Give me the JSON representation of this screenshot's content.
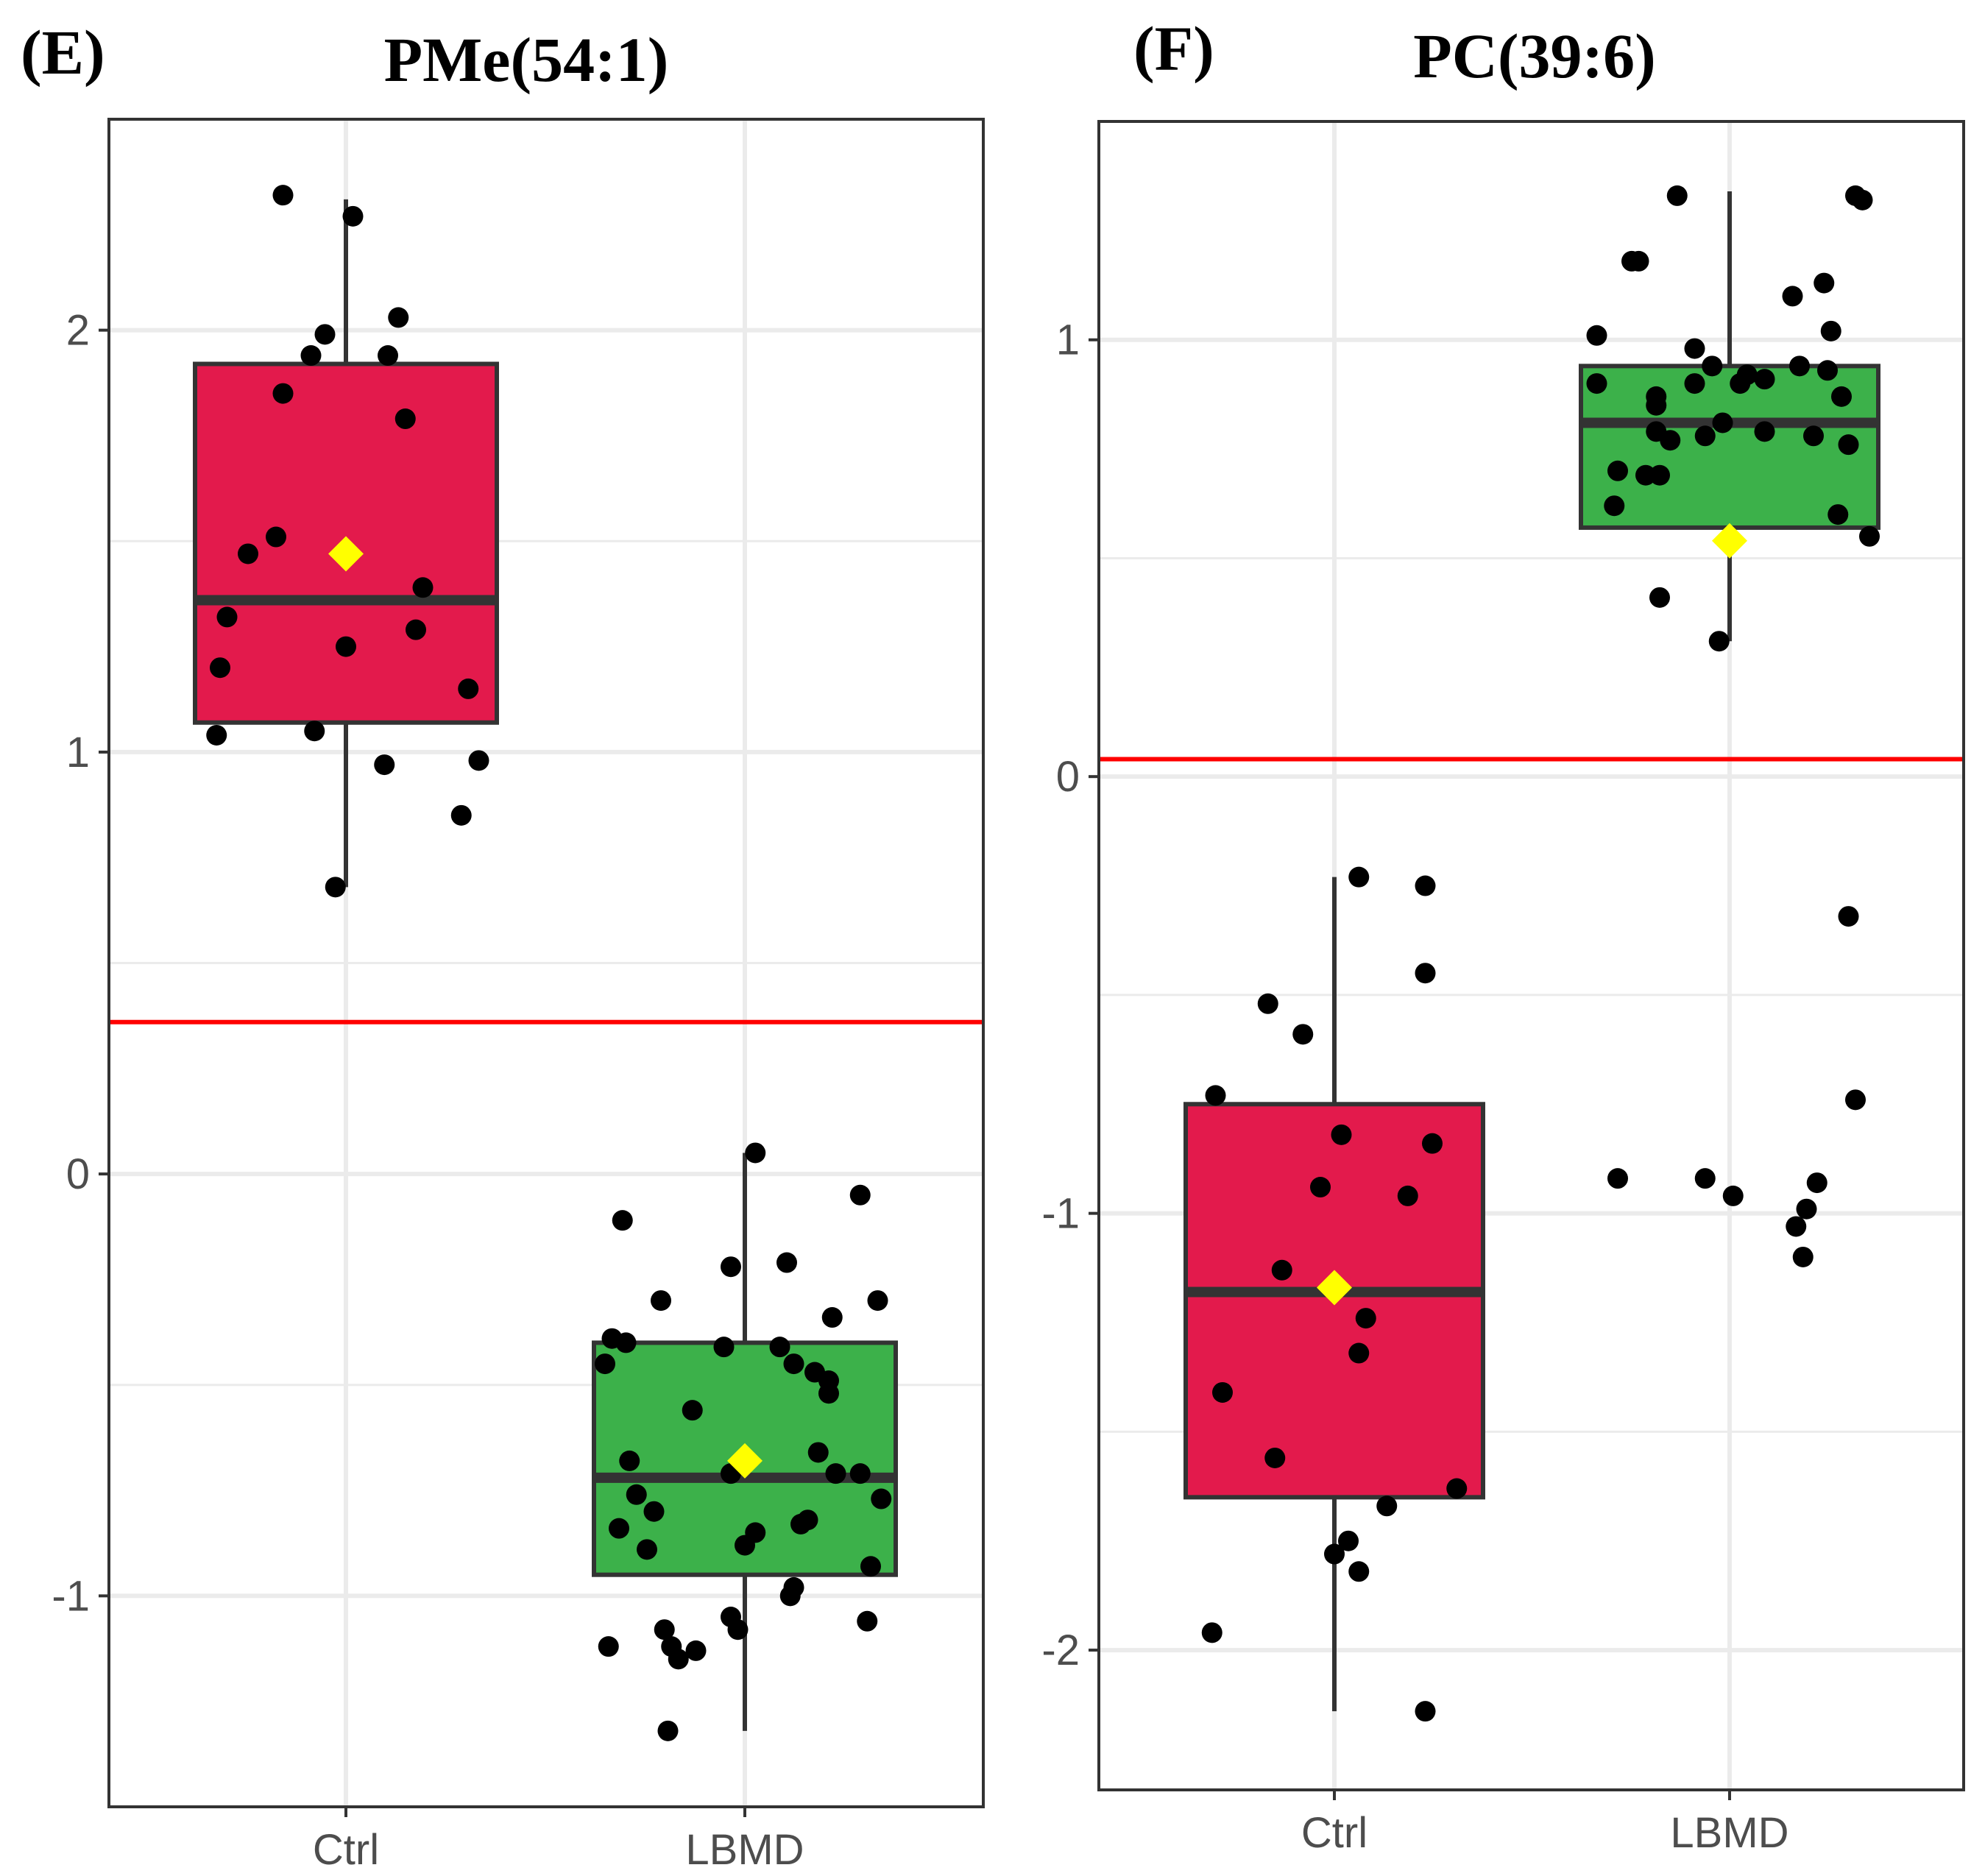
{
  "colors": {
    "ctrl_fill": "#e31a4c",
    "lbmd_fill": "#3cb14a",
    "box_stroke": "#333333",
    "point": "#000000",
    "mean_marker": "#ffff00",
    "threshold": "#ff0000",
    "grid": "#ebebeb",
    "panel_border": "#333333",
    "tick_text": "#4d4d4d"
  },
  "chart_data": [
    {
      "panel": "(E)",
      "title": "PMe(54:1)",
      "type": "box",
      "categories": [
        "Ctrl",
        "LBMD"
      ],
      "ylim": [
        -1.5,
        2.5
      ],
      "yticks": [
        -1,
        0,
        1,
        2
      ],
      "ytick_labels": [
        "-1",
        "0",
        "1",
        "2"
      ],
      "threshold": 0.36,
      "boxes": [
        {
          "group": "Ctrl",
          "q1": 1.07,
          "median": 1.36,
          "q3": 1.92,
          "whisker_low": 0.68,
          "whisker_high": 2.31,
          "mean": 1.47
        },
        {
          "group": "LBMD",
          "q1": -0.95,
          "median": -0.72,
          "q3": -0.4,
          "whisker_low": -1.32,
          "whisker_high": 0.05,
          "mean": -0.68
        }
      ],
      "points": [
        {
          "group": "Ctrl",
          "jitter": -0.18,
          "y": 2.32
        },
        {
          "group": "Ctrl",
          "jitter": 0.02,
          "y": 2.27
        },
        {
          "group": "Ctrl",
          "jitter": 0.15,
          "y": 2.03
        },
        {
          "group": "Ctrl",
          "jitter": -0.06,
          "y": 1.99
        },
        {
          "group": "Ctrl",
          "jitter": -0.1,
          "y": 1.94
        },
        {
          "group": "Ctrl",
          "jitter": 0.12,
          "y": 1.94
        },
        {
          "group": "Ctrl",
          "jitter": -0.18,
          "y": 1.85
        },
        {
          "group": "Ctrl",
          "jitter": 0.17,
          "y": 1.79
        },
        {
          "group": "Ctrl",
          "jitter": -0.2,
          "y": 1.51
        },
        {
          "group": "Ctrl",
          "jitter": -0.28,
          "y": 1.47
        },
        {
          "group": "Ctrl",
          "jitter": 0.22,
          "y": 1.39
        },
        {
          "group": "Ctrl",
          "jitter": -0.34,
          "y": 1.32
        },
        {
          "group": "Ctrl",
          "jitter": 0.2,
          "y": 1.29
        },
        {
          "group": "Ctrl",
          "jitter": 0.0,
          "y": 1.25
        },
        {
          "group": "Ctrl",
          "jitter": -0.36,
          "y": 1.2
        },
        {
          "group": "Ctrl",
          "jitter": 0.35,
          "y": 1.15
        },
        {
          "group": "Ctrl",
          "jitter": -0.09,
          "y": 1.05
        },
        {
          "group": "Ctrl",
          "jitter": -0.37,
          "y": 1.04
        },
        {
          "group": "Ctrl",
          "jitter": 0.38,
          "y": 0.98
        },
        {
          "group": "Ctrl",
          "jitter": 0.11,
          "y": 0.97
        },
        {
          "group": "Ctrl",
          "jitter": 0.33,
          "y": 0.85
        },
        {
          "group": "Ctrl",
          "jitter": -0.03,
          "y": 0.68
        },
        {
          "group": "LBMD",
          "jitter": 0.03,
          "y": 0.05
        },
        {
          "group": "LBMD",
          "jitter": 0.33,
          "y": -0.05
        },
        {
          "group": "LBMD",
          "jitter": -0.35,
          "y": -0.11
        },
        {
          "group": "LBMD",
          "jitter": -0.04,
          "y": -0.22
        },
        {
          "group": "LBMD",
          "jitter": 0.12,
          "y": -0.21
        },
        {
          "group": "LBMD",
          "jitter": -0.24,
          "y": -0.3
        },
        {
          "group": "LBMD",
          "jitter": 0.38,
          "y": -0.3
        },
        {
          "group": "LBMD",
          "jitter": 0.25,
          "y": -0.34
        },
        {
          "group": "LBMD",
          "jitter": -0.38,
          "y": -0.39
        },
        {
          "group": "LBMD",
          "jitter": -0.34,
          "y": -0.4
        },
        {
          "group": "LBMD",
          "jitter": -0.06,
          "y": -0.41
        },
        {
          "group": "LBMD",
          "jitter": 0.1,
          "y": -0.41
        },
        {
          "group": "LBMD",
          "jitter": -0.4,
          "y": -0.45
        },
        {
          "group": "LBMD",
          "jitter": 0.14,
          "y": -0.45
        },
        {
          "group": "LBMD",
          "jitter": 0.2,
          "y": -0.47
        },
        {
          "group": "LBMD",
          "jitter": 0.24,
          "y": -0.49
        },
        {
          "group": "LBMD",
          "jitter": 0.24,
          "y": -0.52
        },
        {
          "group": "LBMD",
          "jitter": -0.15,
          "y": -0.56
        },
        {
          "group": "LBMD",
          "jitter": 0.21,
          "y": -0.66
        },
        {
          "group": "LBMD",
          "jitter": -0.33,
          "y": -0.68
        },
        {
          "group": "LBMD",
          "jitter": 0.26,
          "y": -0.71
        },
        {
          "group": "LBMD",
          "jitter": -0.04,
          "y": -0.71
        },
        {
          "group": "LBMD",
          "jitter": 0.33,
          "y": -0.71
        },
        {
          "group": "LBMD",
          "jitter": -0.31,
          "y": -0.76
        },
        {
          "group": "LBMD",
          "jitter": 0.39,
          "y": -0.77
        },
        {
          "group": "LBMD",
          "jitter": -0.26,
          "y": -0.8
        },
        {
          "group": "LBMD",
          "jitter": 0.18,
          "y": -0.82
        },
        {
          "group": "LBMD",
          "jitter": 0.16,
          "y": -0.83
        },
        {
          "group": "LBMD",
          "jitter": -0.36,
          "y": -0.84
        },
        {
          "group": "LBMD",
          "jitter": 0.03,
          "y": -0.85
        },
        {
          "group": "LBMD",
          "jitter": 0.0,
          "y": -0.88
        },
        {
          "group": "LBMD",
          "jitter": -0.28,
          "y": -0.89
        },
        {
          "group": "LBMD",
          "jitter": 0.36,
          "y": -0.93
        },
        {
          "group": "LBMD",
          "jitter": 0.14,
          "y": -0.98
        },
        {
          "group": "LBMD",
          "jitter": 0.13,
          "y": -1.0
        },
        {
          "group": "LBMD",
          "jitter": -0.04,
          "y": -1.05
        },
        {
          "group": "LBMD",
          "jitter": 0.35,
          "y": -1.06
        },
        {
          "group": "LBMD",
          "jitter": -0.02,
          "y": -1.08
        },
        {
          "group": "LBMD",
          "jitter": -0.23,
          "y": -1.08
        },
        {
          "group": "LBMD",
          "jitter": -0.39,
          "y": -1.12
        },
        {
          "group": "LBMD",
          "jitter": -0.21,
          "y": -1.12
        },
        {
          "group": "LBMD",
          "jitter": -0.14,
          "y": -1.13
        },
        {
          "group": "LBMD",
          "jitter": -0.19,
          "y": -1.15
        },
        {
          "group": "LBMD",
          "jitter": -0.22,
          "y": -1.32
        }
      ]
    },
    {
      "panel": "(F)",
      "title": "PC(39:6)",
      "type": "box",
      "categories": [
        "Ctrl",
        "LBMD"
      ],
      "ylim": [
        -2.32,
        1.5
      ],
      "yticks": [
        -2,
        -1,
        0,
        1
      ],
      "ytick_labels": [
        "-2",
        "-1",
        "0",
        "1"
      ],
      "threshold": 0.04,
      "boxes": [
        {
          "group": "Ctrl",
          "q1": -1.65,
          "median": -1.18,
          "q3": -0.75,
          "whisker_low": -2.14,
          "whisker_high": -0.23,
          "mean": -1.17
        },
        {
          "group": "LBMD",
          "q1": 0.57,
          "median": 0.81,
          "q3": 0.94,
          "whisker_low": 0.31,
          "whisker_high": 1.34,
          "mean": 0.54
        }
      ],
      "points": [
        {
          "group": "Ctrl",
          "jitter": 0.07,
          "y": -0.23
        },
        {
          "group": "Ctrl",
          "jitter": 0.26,
          "y": -0.25
        },
        {
          "group": "Ctrl",
          "jitter": 0.26,
          "y": -0.45
        },
        {
          "group": "Ctrl",
          "jitter": -0.19,
          "y": -0.52
        },
        {
          "group": "Ctrl",
          "jitter": -0.09,
          "y": -0.59
        },
        {
          "group": "Ctrl",
          "jitter": -0.34,
          "y": -0.73
        },
        {
          "group": "Ctrl",
          "jitter": 0.02,
          "y": -0.82
        },
        {
          "group": "Ctrl",
          "jitter": 0.28,
          "y": -0.84
        },
        {
          "group": "Ctrl",
          "jitter": -0.04,
          "y": -0.94
        },
        {
          "group": "Ctrl",
          "jitter": 0.21,
          "y": -0.96
        },
        {
          "group": "Ctrl",
          "jitter": -0.15,
          "y": -1.13
        },
        {
          "group": "Ctrl",
          "jitter": 0.09,
          "y": -1.24
        },
        {
          "group": "Ctrl",
          "jitter": 0.07,
          "y": -1.32
        },
        {
          "group": "Ctrl",
          "jitter": -0.32,
          "y": -1.41
        },
        {
          "group": "Ctrl",
          "jitter": -0.17,
          "y": -1.56
        },
        {
          "group": "Ctrl",
          "jitter": 0.35,
          "y": -1.63
        },
        {
          "group": "Ctrl",
          "jitter": 0.15,
          "y": -1.67
        },
        {
          "group": "Ctrl",
          "jitter": 0.04,
          "y": -1.75
        },
        {
          "group": "Ctrl",
          "jitter": 0.0,
          "y": -1.78
        },
        {
          "group": "Ctrl",
          "jitter": 0.07,
          "y": -1.82
        },
        {
          "group": "Ctrl",
          "jitter": -0.35,
          "y": -1.96
        },
        {
          "group": "Ctrl",
          "jitter": 0.26,
          "y": -2.14
        },
        {
          "group": "LBMD",
          "jitter": -0.15,
          "y": 1.33
        },
        {
          "group": "LBMD",
          "jitter": 0.36,
          "y": 1.33
        },
        {
          "group": "LBMD",
          "jitter": 0.38,
          "y": 1.32
        },
        {
          "group": "LBMD",
          "jitter": -0.26,
          "y": 1.18
        },
        {
          "group": "LBMD",
          "jitter": -0.28,
          "y": 1.18
        },
        {
          "group": "LBMD",
          "jitter": 0.27,
          "y": 1.13
        },
        {
          "group": "LBMD",
          "jitter": 0.18,
          "y": 1.1
        },
        {
          "group": "LBMD",
          "jitter": 0.29,
          "y": 1.02
        },
        {
          "group": "LBMD",
          "jitter": -0.38,
          "y": 1.01
        },
        {
          "group": "LBMD",
          "jitter": -0.1,
          "y": 0.98
        },
        {
          "group": "LBMD",
          "jitter": 0.2,
          "y": 0.94
        },
        {
          "group": "LBMD",
          "jitter": 0.28,
          "y": 0.93
        },
        {
          "group": "LBMD",
          "jitter": -0.05,
          "y": 0.94
        },
        {
          "group": "LBMD",
          "jitter": 0.05,
          "y": 0.92
        },
        {
          "group": "LBMD",
          "jitter": 0.1,
          "y": 0.91
        },
        {
          "group": "LBMD",
          "jitter": 0.03,
          "y": 0.9
        },
        {
          "group": "LBMD",
          "jitter": -0.1,
          "y": 0.9
        },
        {
          "group": "LBMD",
          "jitter": -0.38,
          "y": 0.9
        },
        {
          "group": "LBMD",
          "jitter": -0.21,
          "y": 0.87
        },
        {
          "group": "LBMD",
          "jitter": 0.32,
          "y": 0.87
        },
        {
          "group": "LBMD",
          "jitter": -0.21,
          "y": 0.85
        },
        {
          "group": "LBMD",
          "jitter": -0.02,
          "y": 0.81
        },
        {
          "group": "LBMD",
          "jitter": -0.21,
          "y": 0.79
        },
        {
          "group": "LBMD",
          "jitter": 0.1,
          "y": 0.79
        },
        {
          "group": "LBMD",
          "jitter": 0.24,
          "y": 0.78
        },
        {
          "group": "LBMD",
          "jitter": -0.17,
          "y": 0.77
        },
        {
          "group": "LBMD",
          "jitter": -0.07,
          "y": 0.78
        },
        {
          "group": "LBMD",
          "jitter": 0.34,
          "y": 0.76
        },
        {
          "group": "LBMD",
          "jitter": -0.32,
          "y": 0.7
        },
        {
          "group": "LBMD",
          "jitter": -0.24,
          "y": 0.69
        },
        {
          "group": "LBMD",
          "jitter": -0.2,
          "y": 0.69
        },
        {
          "group": "LBMD",
          "jitter": -0.33,
          "y": 0.62
        },
        {
          "group": "LBMD",
          "jitter": 0.31,
          "y": 0.6
        },
        {
          "group": "LBMD",
          "jitter": 0.4,
          "y": 0.55
        },
        {
          "group": "LBMD",
          "jitter": -0.2,
          "y": 0.41
        },
        {
          "group": "LBMD",
          "jitter": -0.03,
          "y": 0.31
        },
        {
          "group": "LBMD",
          "jitter": 0.34,
          "y": -0.32
        },
        {
          "group": "LBMD",
          "jitter": 0.36,
          "y": -0.74
        },
        {
          "group": "LBMD",
          "jitter": -0.32,
          "y": -0.92
        },
        {
          "group": "LBMD",
          "jitter": -0.07,
          "y": -0.92
        },
        {
          "group": "LBMD",
          "jitter": 0.25,
          "y": -0.93
        },
        {
          "group": "LBMD",
          "jitter": 0.01,
          "y": -0.96
        },
        {
          "group": "LBMD",
          "jitter": 0.22,
          "y": -0.99
        },
        {
          "group": "LBMD",
          "jitter": 0.19,
          "y": -1.03
        },
        {
          "group": "LBMD",
          "jitter": 0.21,
          "y": -1.1
        }
      ]
    }
  ]
}
